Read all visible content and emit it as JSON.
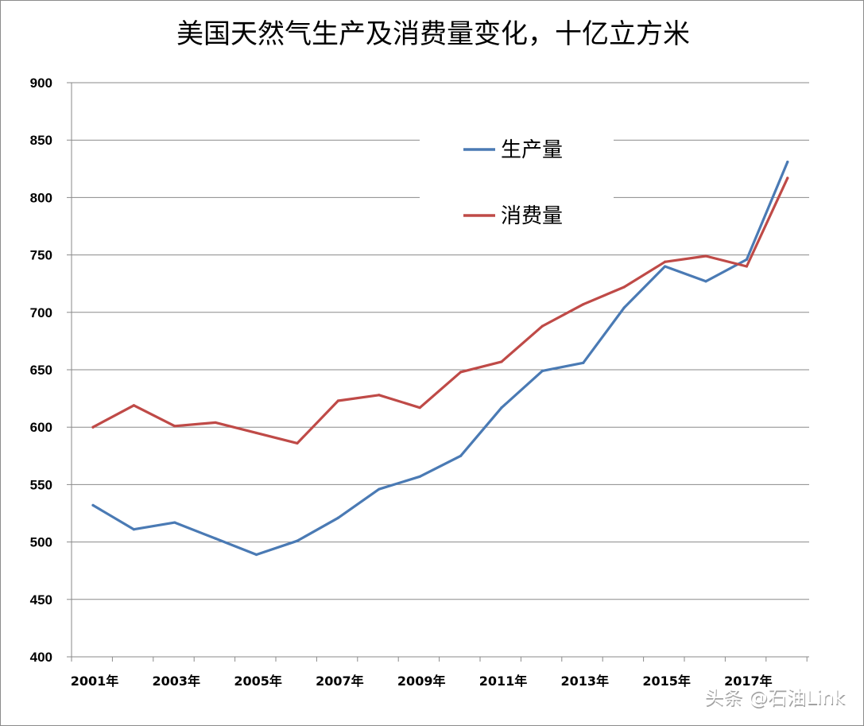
{
  "chart_data": {
    "type": "line",
    "title": "美国天然气生产及消费量变化，十亿立方米",
    "xlabel": "",
    "ylabel": "",
    "ylim": [
      400,
      900
    ],
    "yticks": [
      400,
      450,
      500,
      550,
      600,
      650,
      700,
      750,
      800,
      850,
      900
    ],
    "x": [
      2001,
      2002,
      2003,
      2004,
      2005,
      2006,
      2007,
      2008,
      2009,
      2010,
      2011,
      2012,
      2013,
      2014,
      2015,
      2016,
      2017,
      2018
    ],
    "xtick_labels": [
      {
        "index": 0,
        "label": "2001年"
      },
      {
        "index": 2,
        "label": "2003年"
      },
      {
        "index": 4,
        "label": "2005年"
      },
      {
        "index": 6,
        "label": "2007年"
      },
      {
        "index": 8,
        "label": "2009年"
      },
      {
        "index": 10,
        "label": "2011年"
      },
      {
        "index": 12,
        "label": "2013年"
      },
      {
        "index": 14,
        "label": "2015年"
      },
      {
        "index": 16,
        "label": "2017年"
      }
    ],
    "series": [
      {
        "name": "生产量",
        "color": "#4a7ab4",
        "values": [
          532,
          511,
          517,
          503,
          489,
          501,
          521,
          546,
          557,
          575,
          617,
          649,
          656,
          704,
          740,
          727,
          746,
          831
        ]
      },
      {
        "name": "消费量",
        "color": "#bf4a47",
        "values": [
          600,
          619,
          601,
          604,
          595,
          586,
          623,
          628,
          617,
          648,
          657,
          688,
          707,
          722,
          744,
          749,
          740,
          817
        ]
      }
    ],
    "grid": true,
    "legend_position": "top-center"
  },
  "watermark": "头条 @石油Link"
}
